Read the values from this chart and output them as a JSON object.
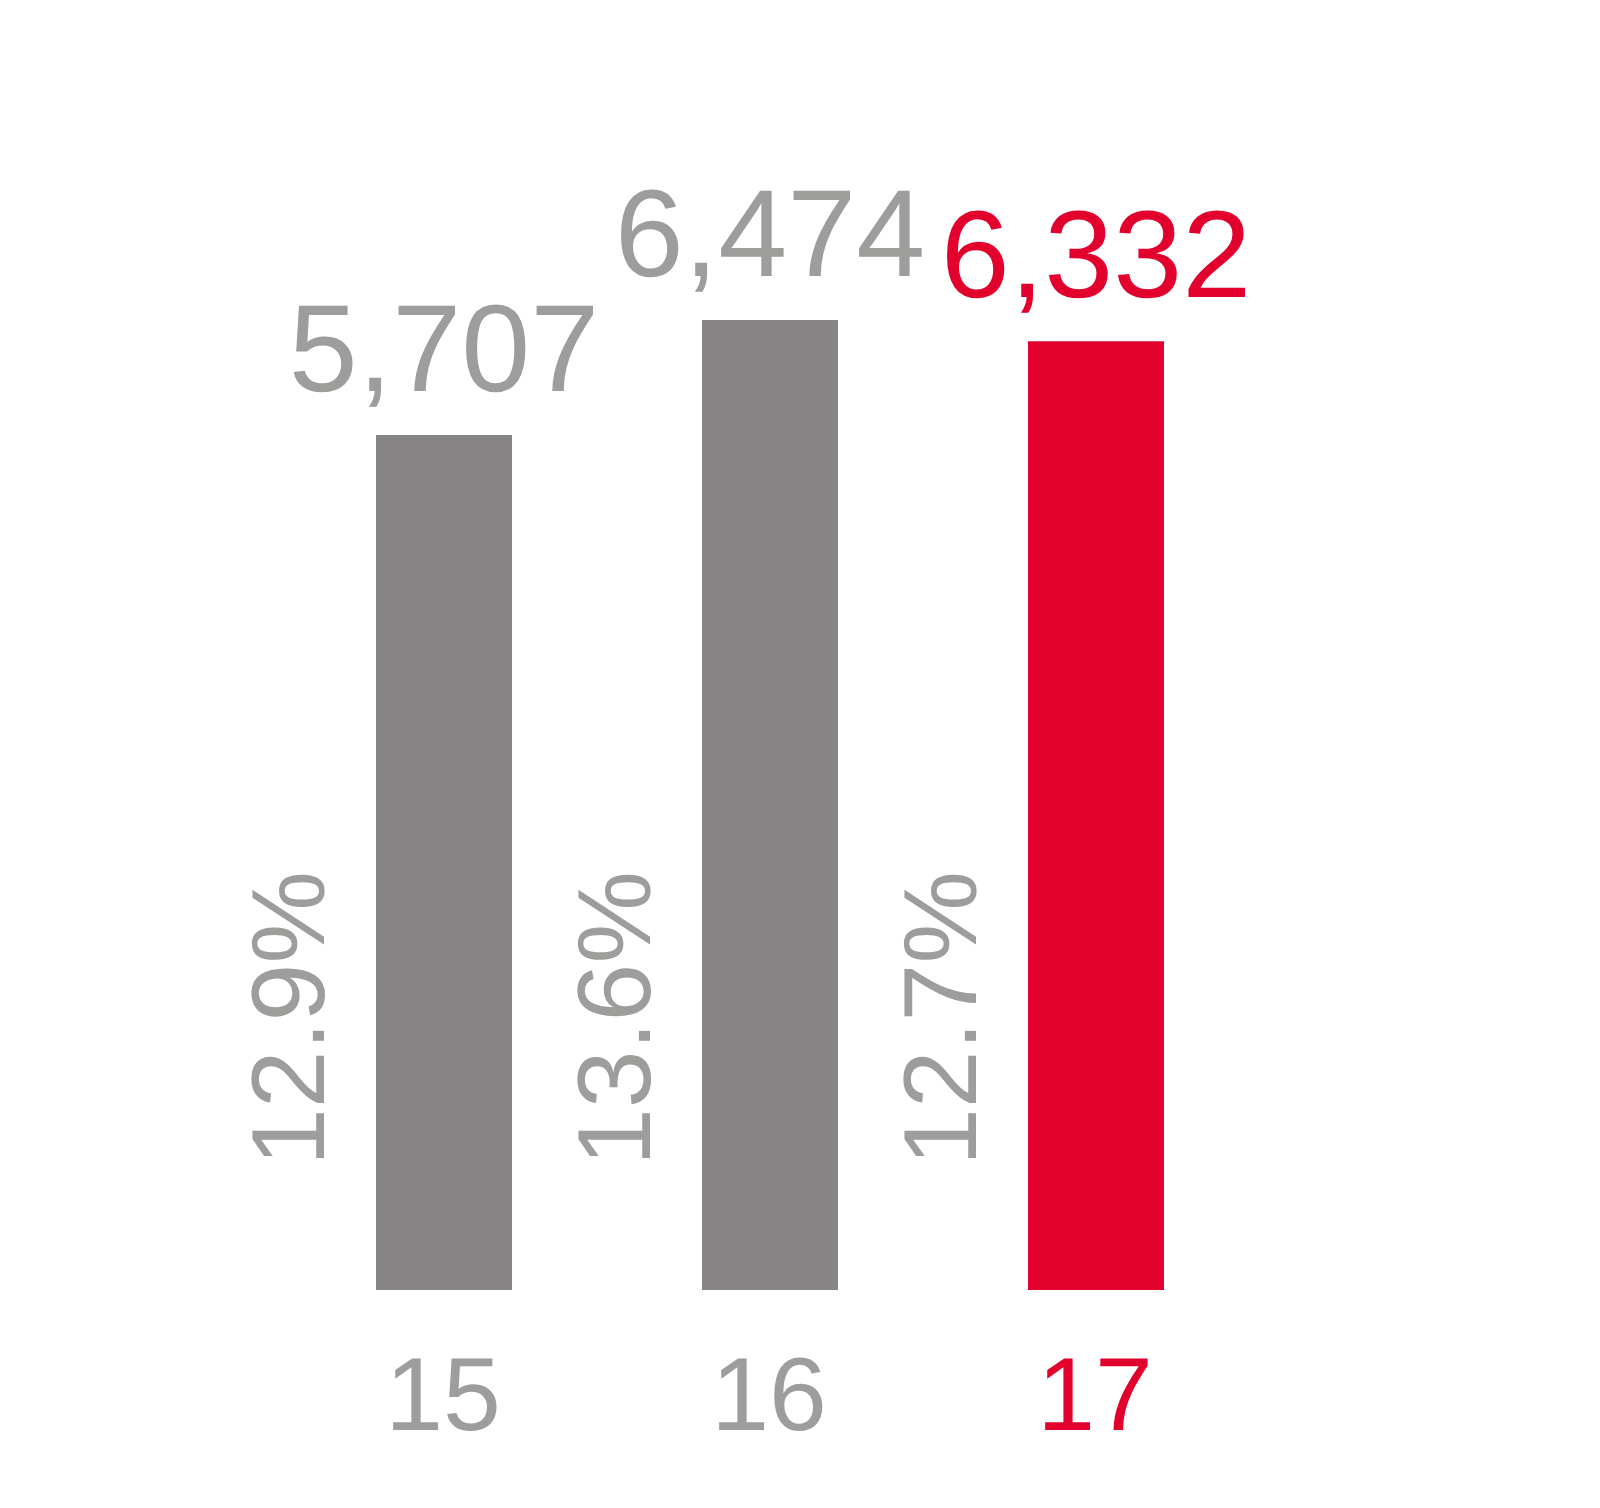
{
  "chart_data": {
    "type": "bar",
    "categories": [
      "15",
      "16",
      "17"
    ],
    "values": [
      5707,
      6474,
      6332
    ],
    "value_labels": [
      "5,707",
      "6,474",
      "6,332"
    ],
    "colors": [
      "#878586",
      "#878586",
      "#e2002d"
    ],
    "annotations": [
      "12.9%",
      "13.6%",
      "12.7%"
    ],
    "tick_labels": "x"
  }
}
